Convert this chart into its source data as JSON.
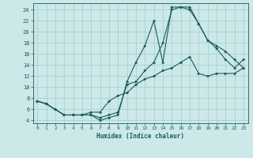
{
  "xlabel": "Humidex (Indice chaleur)",
  "bg_color": "#cce8e8",
  "grid_color": "#aacfcf",
  "line_color": "#1a5c5c",
  "xlim": [
    -0.5,
    23.5
  ],
  "ylim": [
    3.5,
    25.2
  ],
  "xticks": [
    0,
    1,
    2,
    3,
    4,
    5,
    6,
    7,
    8,
    9,
    10,
    11,
    12,
    13,
    14,
    15,
    16,
    17,
    18,
    19,
    20,
    21,
    22,
    23
  ],
  "yticks": [
    4,
    6,
    8,
    10,
    12,
    14,
    16,
    18,
    20,
    22,
    24
  ],
  "line1_x": [
    0,
    1,
    2,
    3,
    4,
    5,
    6,
    7,
    8,
    9,
    10,
    11,
    12,
    13,
    14,
    15,
    16,
    17,
    18,
    19,
    20,
    21,
    22,
    23
  ],
  "line1_y": [
    7.5,
    7.0,
    6.0,
    5.0,
    5.0,
    5.0,
    5.0,
    4.0,
    4.5,
    5.0,
    11.0,
    14.5,
    17.5,
    22.0,
    14.5,
    24.5,
    24.5,
    24.5,
    21.5,
    18.5,
    17.0,
    15.0,
    13.5,
    15.0
  ],
  "line2_x": [
    0,
    1,
    2,
    3,
    4,
    5,
    6,
    7,
    8,
    9,
    10,
    11,
    12,
    13,
    14,
    15,
    16,
    17,
    18,
    19,
    20,
    21,
    22,
    23
  ],
  "line2_y": [
    7.5,
    7.0,
    6.0,
    5.0,
    5.0,
    5.0,
    5.0,
    4.5,
    5.0,
    5.5,
    10.5,
    11.0,
    13.0,
    14.5,
    18.0,
    24.0,
    24.5,
    24.0,
    21.5,
    18.5,
    17.5,
    16.5,
    15.0,
    13.5
  ],
  "line3_x": [
    0,
    1,
    2,
    3,
    4,
    5,
    6,
    7,
    8,
    9,
    10,
    11,
    12,
    13,
    14,
    15,
    16,
    17,
    18,
    19,
    20,
    21,
    22,
    23
  ],
  "line3_y": [
    7.5,
    7.0,
    6.0,
    5.0,
    5.0,
    5.0,
    5.5,
    5.5,
    7.5,
    8.5,
    9.0,
    10.5,
    11.5,
    12.0,
    13.0,
    13.5,
    14.5,
    15.5,
    12.5,
    12.0,
    12.5,
    12.5,
    12.5,
    13.5
  ]
}
